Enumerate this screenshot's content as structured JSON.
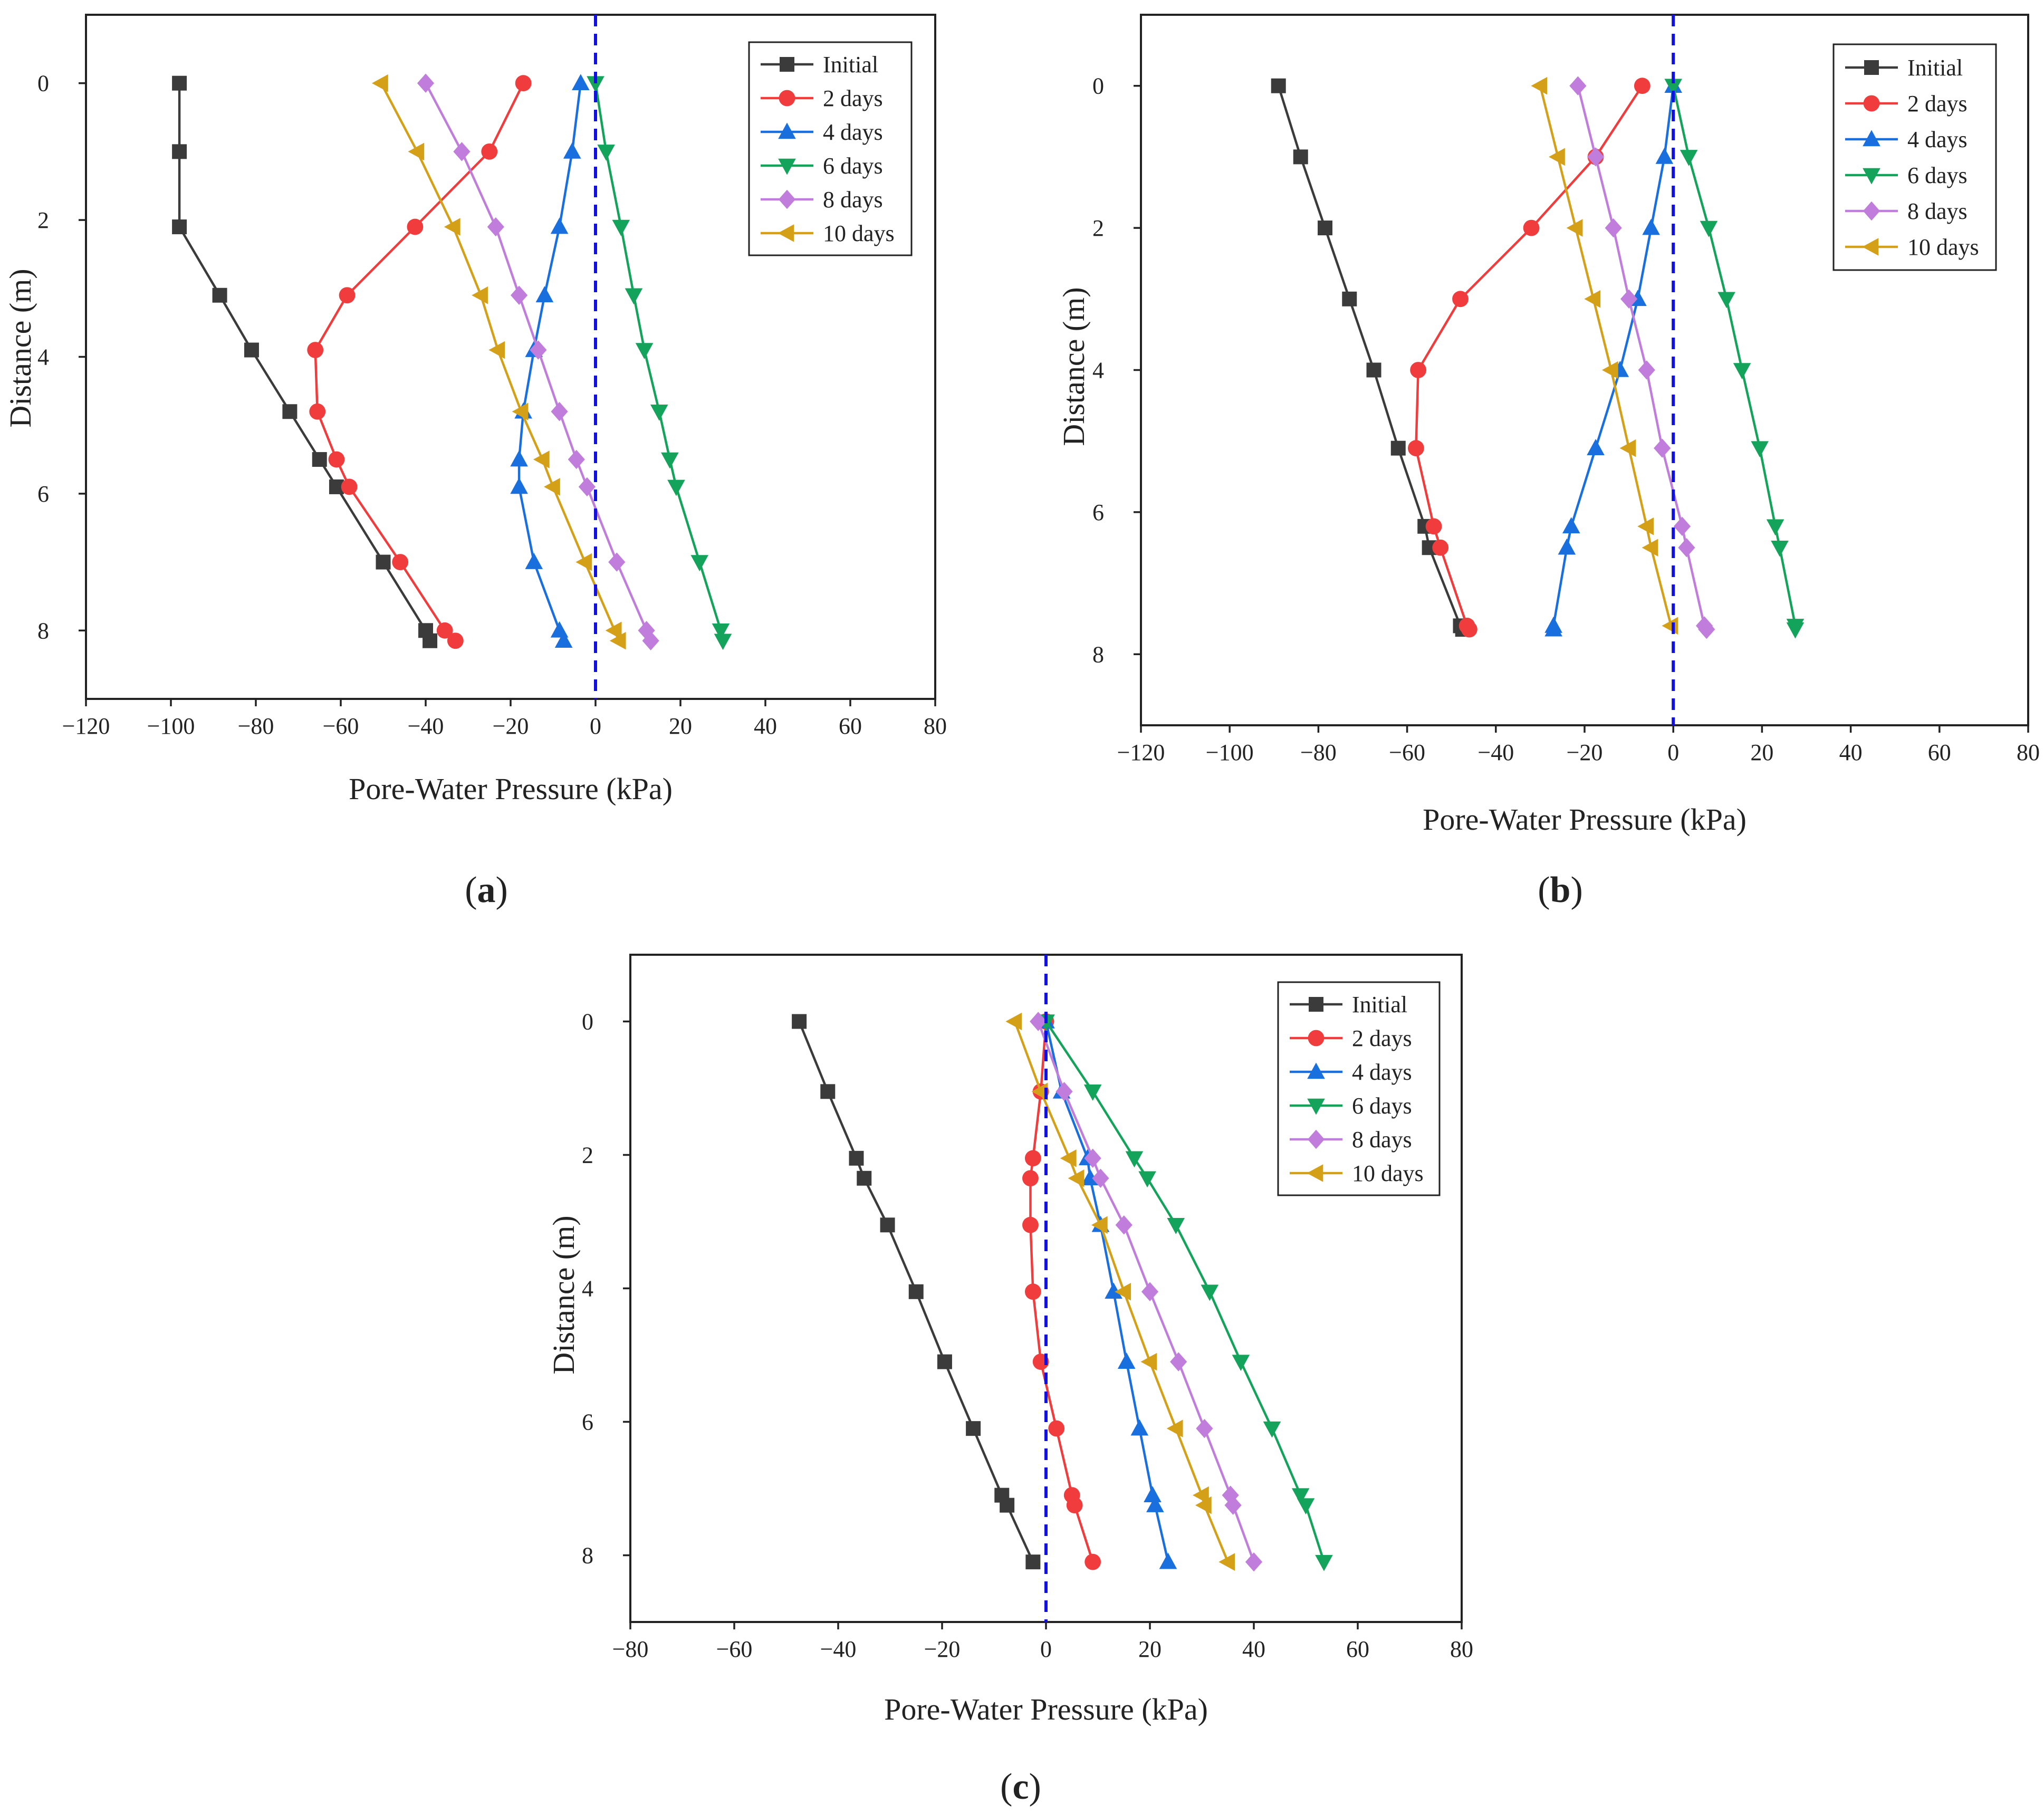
{
  "figure": {
    "series_styles": [
      {
        "name": "Initial",
        "color": "#3b3b3b",
        "marker": "square"
      },
      {
        "name": "2 days",
        "color": "#f03c3c",
        "marker": "circle"
      },
      {
        "name": "4 days",
        "color": "#1a6fdf",
        "marker": "triangle-up"
      },
      {
        "name": "6 days",
        "color": "#14a35a",
        "marker": "triangle-down"
      },
      {
        "name": "8 days",
        "color": "#c07ddc",
        "marker": "diamond"
      },
      {
        "name": "10 days",
        "color": "#d4a017",
        "marker": "triangle-left"
      }
    ],
    "reference_line": {
      "x": 0,
      "color": "#1010e0",
      "style": "dashed"
    }
  },
  "chart_data": [
    {
      "id": "a",
      "caption_letter": "a",
      "caption": "(a)",
      "type": "line",
      "xlabel": "Pore-Water Pressure (kPa)",
      "ylabel": "Distance (m)",
      "xlim": [
        -120,
        80
      ],
      "ylim": [
        -1,
        9
      ],
      "x_ticks": [
        -120,
        -100,
        -80,
        -60,
        -40,
        -20,
        0,
        20,
        40,
        60,
        80
      ],
      "y_ticks": [
        0,
        2,
        4,
        6,
        8
      ],
      "y_inverted": true,
      "legend_position": "top-right",
      "series": [
        {
          "name": "Initial",
          "points": [
            [
              -98,
              0
            ],
            [
              -98,
              1
            ],
            [
              -98,
              2.1
            ],
            [
              -88.5,
              3.1
            ],
            [
              -81,
              3.9
            ],
            [
              -72,
              4.8
            ],
            [
              -65,
              5.5
            ],
            [
              -61,
              5.9
            ],
            [
              -50,
              7
            ],
            [
              -40,
              8
            ],
            [
              -39,
              8.15
            ]
          ]
        },
        {
          "name": "2 days",
          "points": [
            [
              -17,
              0
            ],
            [
              -25,
              1
            ],
            [
              -42.5,
              2.1
            ],
            [
              -58.5,
              3.1
            ],
            [
              -66,
              3.9
            ],
            [
              -65.5,
              4.8
            ],
            [
              -61,
              5.5
            ],
            [
              -58,
              5.9
            ],
            [
              -46,
              7
            ],
            [
              -35.5,
              8
            ],
            [
              -33,
              8.15
            ]
          ]
        },
        {
          "name": "4 days",
          "points": [
            [
              -3.5,
              0
            ],
            [
              -5.5,
              1
            ],
            [
              -8.5,
              2.1
            ],
            [
              -12,
              3.1
            ],
            [
              -14.5,
              3.9
            ],
            [
              -17,
              4.8
            ],
            [
              -18,
              5.5
            ],
            [
              -18,
              5.9
            ],
            [
              -14.5,
              7
            ],
            [
              -8.5,
              8
            ],
            [
              -7.5,
              8.15
            ]
          ]
        },
        {
          "name": "6 days",
          "points": [
            [
              0,
              0
            ],
            [
              2.5,
              1
            ],
            [
              6,
              2.1
            ],
            [
              9,
              3.1
            ],
            [
              11.5,
              3.9
            ],
            [
              15,
              4.8
            ],
            [
              17.5,
              5.5
            ],
            [
              19,
              5.9
            ],
            [
              24.5,
              7
            ],
            [
              29.5,
              8
            ],
            [
              30,
              8.15
            ]
          ]
        },
        {
          "name": "8 days",
          "points": [
            [
              -40,
              0
            ],
            [
              -31.5,
              1
            ],
            [
              -23.5,
              2.1
            ],
            [
              -18,
              3.1
            ],
            [
              -13.5,
              3.9
            ],
            [
              -8.5,
              4.8
            ],
            [
              -4.5,
              5.5
            ],
            [
              -2,
              5.9
            ],
            [
              5,
              7
            ],
            [
              12,
              8
            ],
            [
              13,
              8.15
            ]
          ]
        },
        {
          "name": "10 days",
          "points": [
            [
              -50.5,
              0
            ],
            [
              -42,
              1
            ],
            [
              -33.5,
              2.1
            ],
            [
              -27,
              3.1
            ],
            [
              -23,
              3.9
            ],
            [
              -17.5,
              4.8
            ],
            [
              -12.5,
              5.5
            ],
            [
              -10,
              5.9
            ],
            [
              -2.5,
              7
            ],
            [
              4.5,
              8
            ],
            [
              5.5,
              8.15
            ]
          ]
        }
      ]
    },
    {
      "id": "b",
      "caption_letter": "b",
      "caption": "(b)",
      "type": "line",
      "xlabel": "Pore-Water Pressure (kPa)",
      "ylabel": "Distance (m)",
      "xlim": [
        -120,
        80
      ],
      "ylim": [
        -1,
        9
      ],
      "x_ticks": [
        -120,
        -100,
        -80,
        -60,
        -40,
        -20,
        0,
        20,
        40,
        60,
        80
      ],
      "y_ticks": [
        0,
        2,
        4,
        6,
        8
      ],
      "y_inverted": true,
      "legend_position": "top-right",
      "series": [
        {
          "name": "Initial",
          "points": [
            [
              -89,
              0
            ],
            [
              -84,
              1
            ],
            [
              -78.5,
              2
            ],
            [
              -73,
              3
            ],
            [
              -67.5,
              4
            ],
            [
              -62,
              5.1
            ],
            [
              -56,
              6.2
            ],
            [
              -55,
              6.5
            ],
            [
              -48,
              7.6
            ],
            [
              -47.5,
              7.65
            ]
          ]
        },
        {
          "name": "2 days",
          "points": [
            [
              -7,
              0
            ],
            [
              -17.5,
              1
            ],
            [
              -32,
              2
            ],
            [
              -48,
              3
            ],
            [
              -57.5,
              4
            ],
            [
              -58,
              5.1
            ],
            [
              -54,
              6.2
            ],
            [
              -52.5,
              6.5
            ],
            [
              -46.5,
              7.6
            ],
            [
              -46,
              7.65
            ]
          ]
        },
        {
          "name": "4 days",
          "points": [
            [
              0,
              0
            ],
            [
              -2,
              1
            ],
            [
              -5,
              2
            ],
            [
              -8,
              3
            ],
            [
              -12,
              4
            ],
            [
              -17.5,
              5.1
            ],
            [
              -23,
              6.2
            ],
            [
              -24,
              6.5
            ],
            [
              -27,
              7.6
            ],
            [
              -27,
              7.65
            ]
          ]
        },
        {
          "name": "6 days",
          "points": [
            [
              0,
              0
            ],
            [
              3.5,
              1
            ],
            [
              8,
              2
            ],
            [
              12,
              3
            ],
            [
              15.5,
              4
            ],
            [
              19.5,
              5.1
            ],
            [
              23,
              6.2
            ],
            [
              24,
              6.5
            ],
            [
              27.5,
              7.6
            ],
            [
              27.5,
              7.65
            ]
          ]
        },
        {
          "name": "8 days",
          "points": [
            [
              -21.5,
              0
            ],
            [
              -17.5,
              1
            ],
            [
              -13.5,
              2
            ],
            [
              -10,
              3
            ],
            [
              -6,
              4
            ],
            [
              -2.5,
              5.1
            ],
            [
              2,
              6.2
            ],
            [
              3,
              6.5
            ],
            [
              7,
              7.6
            ],
            [
              7.5,
              7.65
            ]
          ]
        },
        {
          "name": "10 days",
          "points": [
            [
              -30,
              0
            ],
            [
              -26,
              1
            ],
            [
              -22,
              2
            ],
            [
              -18,
              3
            ],
            [
              -14,
              4
            ],
            [
              -10,
              5.1
            ],
            [
              -6,
              6.2
            ],
            [
              -5,
              6.5
            ],
            [
              -0.5,
              7.6
            ]
          ]
        }
      ]
    },
    {
      "id": "c",
      "caption_letter": "c",
      "caption": "(c)",
      "type": "line",
      "xlabel": "Pore-Water Pressure (kPa)",
      "ylabel": "Distance (m)",
      "xlim": [
        -80,
        80
      ],
      "ylim": [
        -1,
        9
      ],
      "x_ticks": [
        -80,
        -60,
        -40,
        -20,
        0,
        20,
        40,
        60,
        80
      ],
      "y_ticks": [
        0,
        2,
        4,
        6,
        8
      ],
      "y_inverted": true,
      "legend_position": "top-right",
      "series": [
        {
          "name": "Initial",
          "points": [
            [
              -47.5,
              0
            ],
            [
              -42,
              1.05
            ],
            [
              -36.5,
              2.05
            ],
            [
              -35,
              2.35
            ],
            [
              -30.5,
              3.05
            ],
            [
              -25,
              4.05
            ],
            [
              -19.5,
              5.1
            ],
            [
              -14,
              6.1
            ],
            [
              -8.5,
              7.1
            ],
            [
              -7.5,
              7.25
            ],
            [
              -2.5,
              8.1
            ]
          ]
        },
        {
          "name": "2 days",
          "points": [
            [
              0,
              0
            ],
            [
              -1,
              1.05
            ],
            [
              -2.5,
              2.05
            ],
            [
              -3,
              2.35
            ],
            [
              -3,
              3.05
            ],
            [
              -2.5,
              4.05
            ],
            [
              -1,
              5.1
            ],
            [
              2,
              6.1
            ],
            [
              5,
              7.1
            ],
            [
              5.5,
              7.25
            ],
            [
              9,
              8.1
            ]
          ]
        },
        {
          "name": "4 days",
          "points": [
            [
              0,
              0
            ],
            [
              3,
              1.05
            ],
            [
              8,
              2.05
            ],
            [
              8.5,
              2.35
            ],
            [
              10.5,
              3.05
            ],
            [
              13,
              4.05
            ],
            [
              15.5,
              5.1
            ],
            [
              18,
              6.1
            ],
            [
              20.5,
              7.1
            ],
            [
              21,
              7.25
            ],
            [
              23.5,
              8.1
            ]
          ]
        },
        {
          "name": "6 days",
          "points": [
            [
              0,
              0
            ],
            [
              9,
              1.05
            ],
            [
              17,
              2.05
            ],
            [
              19.5,
              2.35
            ],
            [
              25,
              3.05
            ],
            [
              31.5,
              4.05
            ],
            [
              37.5,
              5.1
            ],
            [
              43.5,
              6.1
            ],
            [
              49,
              7.1
            ],
            [
              50,
              7.25
            ],
            [
              53.5,
              8.1
            ]
          ]
        },
        {
          "name": "8 days",
          "points": [
            [
              -1.5,
              0
            ],
            [
              3.5,
              1.05
            ],
            [
              9,
              2.05
            ],
            [
              10.5,
              2.35
            ],
            [
              15,
              3.05
            ],
            [
              20,
              4.05
            ],
            [
              25.5,
              5.1
            ],
            [
              30.5,
              6.1
            ],
            [
              35.5,
              7.1
            ],
            [
              36,
              7.25
            ],
            [
              40,
              8.1
            ]
          ]
        },
        {
          "name": "10 days",
          "points": [
            [
              -6,
              0
            ],
            [
              -1,
              1.05
            ],
            [
              4.5,
              2.05
            ],
            [
              6,
              2.35
            ],
            [
              10.5,
              3.05
            ],
            [
              15,
              4.05
            ],
            [
              20,
              5.1
            ],
            [
              25,
              6.1
            ],
            [
              30,
              7.1
            ],
            [
              30.5,
              7.25
            ],
            [
              35,
              8.1
            ]
          ]
        }
      ]
    }
  ]
}
